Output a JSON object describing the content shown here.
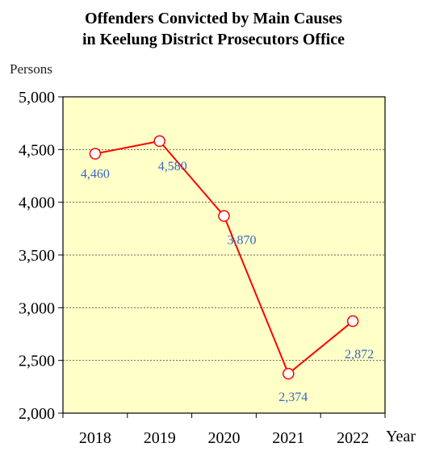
{
  "chart_data": {
    "type": "line",
    "title": [
      "Offenders Convicted by Main Causes",
      "in  Keelung District Prosecutors Office"
    ],
    "ylabel": "Persons",
    "xlabel": "Year",
    "categories": [
      "2018",
      "2019",
      "2020",
      "2021",
      "2022"
    ],
    "series": [
      {
        "name": "",
        "values": [
          4460,
          4580,
          3870,
          2374,
          2872
        ]
      }
    ],
    "value_labels": [
      "4,460",
      "4,580",
      "3,870",
      "2,374",
      "2,872"
    ],
    "yticks": [
      2000,
      2500,
      3000,
      3500,
      4000,
      4500,
      5000
    ],
    "ytick_labels": [
      "2,000",
      "2,500",
      "3,000",
      "3,500",
      "4,000",
      "4,500",
      "5,000"
    ],
    "ylim": [
      2000,
      5000
    ],
    "grid": true,
    "legend": "none",
    "colors": {
      "plot_background": "#ffffc8",
      "line": "#ff0000",
      "marker_fill": "#ffffff",
      "data_label": "#3a66c4",
      "grid": "#666666"
    }
  }
}
